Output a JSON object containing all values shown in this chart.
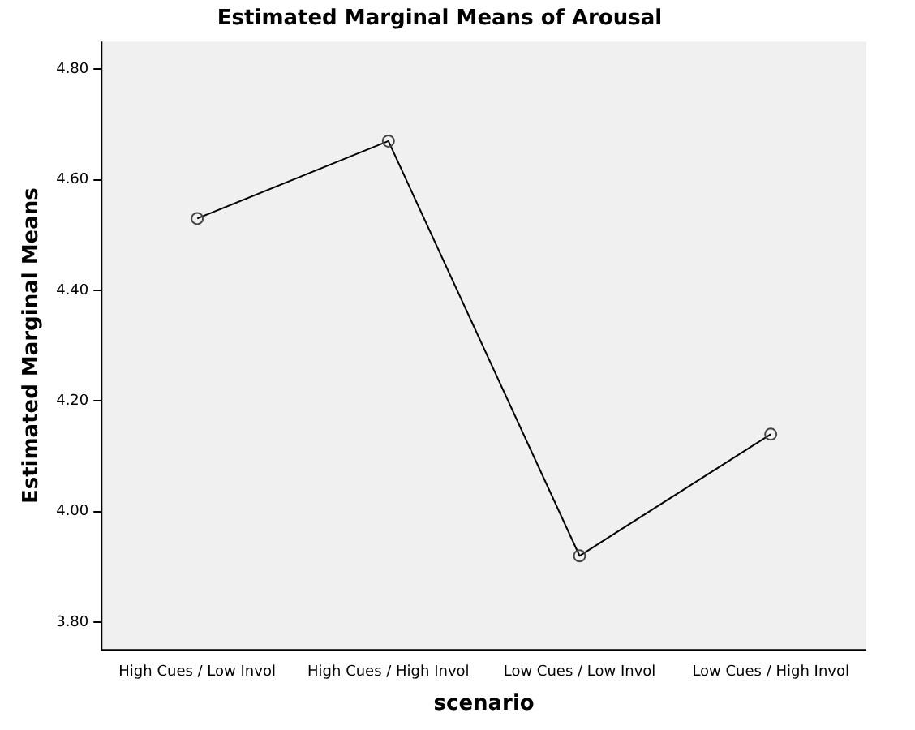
{
  "chart_data": {
    "type": "line",
    "title": "Estimated Marginal Means of Arousal",
    "xlabel": "scenario",
    "ylabel": "Estimated Marginal Means",
    "categories": [
      "High Cues / Low Invol",
      "High Cues / High Invol",
      "Low Cues / Low Invol",
      "Low Cues / High Invol"
    ],
    "series": [
      {
        "color": "#000000",
        "values": [
          4.53,
          4.67,
          3.92,
          4.14
        ]
      }
    ],
    "ylim": [
      3.75,
      4.85
    ],
    "yticks": [
      {
        "value": 3.8,
        "label": "3.80"
      },
      {
        "value": 4.0,
        "label": "4.00"
      },
      {
        "value": 4.2,
        "label": "4.20"
      },
      {
        "value": 4.4,
        "label": "4.40"
      },
      {
        "value": 4.6,
        "label": "4.60"
      },
      {
        "value": 4.8,
        "label": "4.80"
      }
    ],
    "grid": false,
    "legend": false,
    "marker": "circle",
    "line_style": "solid"
  }
}
